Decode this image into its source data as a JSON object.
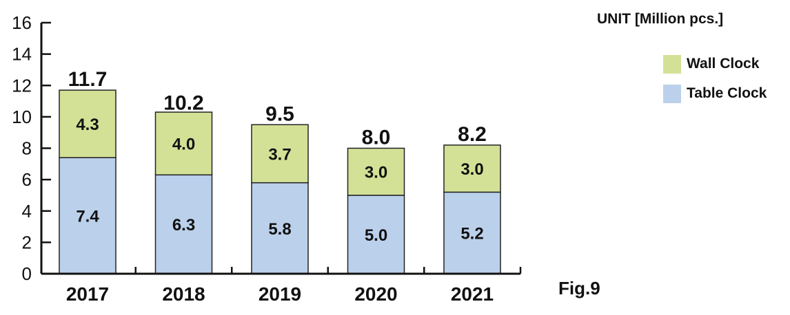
{
  "unit_label": "UNIT [Million pcs.]",
  "figure_label": "Fig.9",
  "legend": [
    {
      "label": "Wall Clock",
      "color": "#d3e197"
    },
    {
      "label": "Table Clock",
      "color": "#bbd0ea"
    }
  ],
  "chart_data": {
    "type": "bar",
    "stacked": true,
    "categories": [
      "2017",
      "2018",
      "2019",
      "2020",
      "2021"
    ],
    "series": [
      {
        "name": "Table Clock",
        "color": "#bbd0ea",
        "values": [
          7.4,
          6.3,
          5.8,
          5.0,
          5.2
        ],
        "labels": [
          "7.4",
          "6.3",
          "5.8",
          "5.0",
          "5.2"
        ]
      },
      {
        "name": "Wall Clock",
        "color": "#d3e197",
        "values": [
          4.3,
          4.0,
          3.7,
          3.0,
          3.0
        ],
        "labels": [
          "4.3",
          "4.0",
          "3.7",
          "3.0",
          "3.0"
        ]
      }
    ],
    "totals": [
      11.7,
      10.2,
      9.5,
      8.0,
      8.2
    ],
    "total_labels": [
      "11.7",
      "10.2",
      "9.5",
      "8.0",
      "8.2"
    ],
    "ylim": [
      0,
      16
    ],
    "yticks": [
      "0",
      "2",
      "4",
      "6",
      "8",
      "10",
      "12",
      "14",
      "16"
    ],
    "grid": false
  }
}
